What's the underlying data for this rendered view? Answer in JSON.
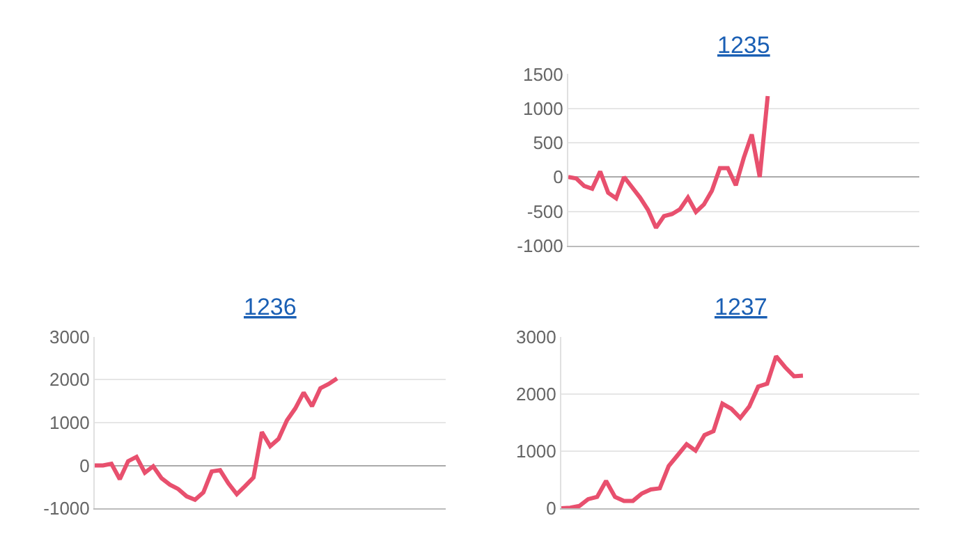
{
  "chart_data": [
    {
      "type": "line",
      "title": "1235",
      "color": "#e8506e",
      "grid": "y",
      "tick_labels": "y",
      "ylim": [
        -1000,
        1500
      ],
      "yticks": [
        -1000,
        -500,
        0,
        500,
        1000,
        1500
      ],
      "categories": [
        null,
        null,
        null,
        null,
        null,
        null,
        null,
        null,
        null,
        null,
        null,
        null,
        null,
        null,
        null,
        null,
        null,
        null,
        null,
        null,
        null,
        null,
        null,
        null,
        null,
        null,
        null,
        null,
        null,
        null,
        null,
        null,
        null,
        null,
        null,
        null,
        null,
        null,
        null,
        null,
        null,
        null,
        null,
        null,
        null
      ],
      "values": [
        0,
        -20,
        -130,
        -170,
        80,
        -230,
        -310,
        0,
        -150,
        -300,
        -480,
        -740,
        -570,
        -540,
        -470,
        -300,
        -510,
        -400,
        -200,
        130,
        130,
        -120,
        280,
        620,
        0,
        1180,
        null,
        null,
        null,
        null,
        null,
        null,
        null,
        null,
        null,
        null,
        null,
        null,
        null,
        null,
        null,
        null,
        null,
        null,
        null
      ]
    },
    {
      "type": "line",
      "title": "1236",
      "color": "#e8506e",
      "grid": "y",
      "tick_labels": "y",
      "ylim": [
        -1000,
        3000
      ],
      "yticks": [
        -1000,
        0,
        1000,
        2000,
        3000
      ],
      "categories": [
        null,
        null,
        null,
        null,
        null,
        null,
        null,
        null,
        null,
        null,
        null,
        null,
        null,
        null,
        null,
        null,
        null,
        null,
        null,
        null,
        null,
        null,
        null,
        null,
        null,
        null,
        null,
        null,
        null,
        null,
        null,
        null,
        null,
        null,
        null,
        null,
        null,
        null,
        null,
        null,
        null,
        null,
        null
      ],
      "values": [
        0,
        0,
        40,
        -320,
        100,
        200,
        -170,
        -20,
        -300,
        -450,
        -550,
        -720,
        -800,
        -630,
        -140,
        -110,
        -420,
        -670,
        -480,
        -280,
        780,
        450,
        620,
        1050,
        1330,
        1700,
        1380,
        1800,
        1900,
        2030,
        null,
        null,
        null,
        null,
        null,
        null,
        null,
        null,
        null,
        null,
        null,
        null,
        null
      ]
    },
    {
      "type": "line",
      "title": "1237",
      "color": "#e8506e",
      "grid": "y",
      "tick_labels": "y",
      "ylim": [
        0,
        3000
      ],
      "yticks": [
        0,
        1000,
        2000,
        3000
      ],
      "categories": [
        null,
        null,
        null,
        null,
        null,
        null,
        null,
        null,
        null,
        null,
        null,
        null,
        null,
        null,
        null,
        null,
        null,
        null,
        null,
        null,
        null,
        null,
        null,
        null,
        null,
        null,
        null,
        null,
        null,
        null,
        null,
        null,
        null,
        null,
        null,
        null,
        null,
        null,
        null,
        null,
        null
      ],
      "values": [
        0,
        10,
        40,
        160,
        200,
        480,
        200,
        130,
        130,
        260,
        330,
        350,
        740,
        930,
        1120,
        1010,
        1280,
        1350,
        1830,
        1740,
        1580,
        1780,
        2130,
        2180,
        2660,
        2470,
        2310,
        2320,
        null,
        null,
        null,
        null,
        null,
        null,
        null,
        null,
        null,
        null,
        null,
        null,
        null
      ]
    }
  ]
}
